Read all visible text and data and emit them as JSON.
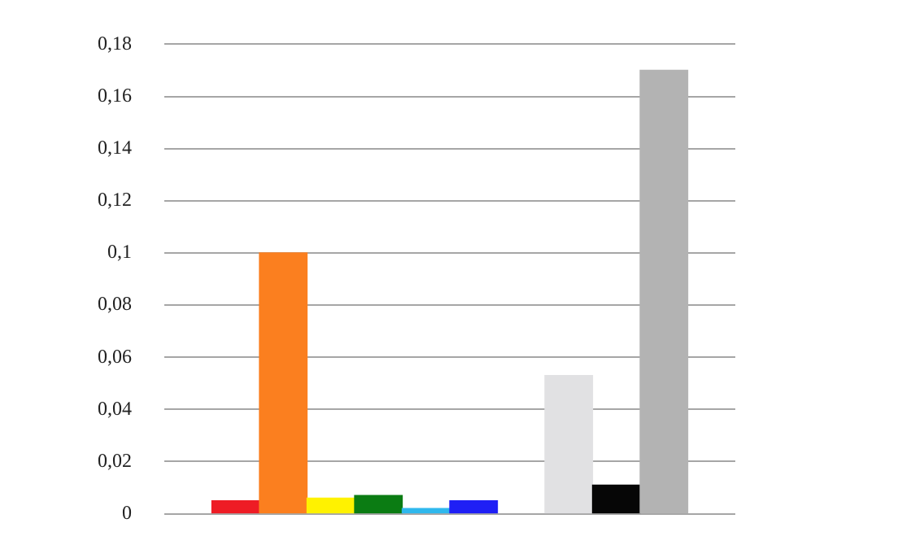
{
  "chart_data": {
    "type": "bar",
    "categories": [
      null,
      null,
      null,
      null,
      null,
      null,
      null,
      null,
      null,
      null,
      null,
      null
    ],
    "values": [
      null,
      0.005,
      0.1,
      0.006,
      0.007,
      0.002,
      0.005,
      null,
      0.053,
      0.011,
      0.17,
      null
    ],
    "colors": [
      null,
      "#ee1c25",
      "#fb7f1f",
      "#fff200",
      "#0b7c13",
      "#2fb8ed",
      "#1f1ff5",
      null,
      "#e1e1e3",
      "#060606",
      "#b3b3b3",
      null
    ],
    "ylim": [
      0,
      0.18
    ],
    "yticks": [
      0,
      {
        "value": 0.02,
        "label": "0,02"
      },
      {
        "value": 0.04,
        "label": "0,04"
      },
      {
        "value": 0.06,
        "label": "0,06"
      },
      {
        "value": 0.08,
        "label": "0,08"
      },
      {
        "value": 0.1,
        "label": "0,1"
      },
      {
        "value": 0.12,
        "label": "0,12"
      },
      {
        "value": 0.14,
        "label": "0,14"
      },
      {
        "value": 0.16,
        "label": "0,16"
      },
      {
        "value": 0.18,
        "label": "0,18"
      }
    ],
    "grid": "y",
    "legend": false,
    "tick_labels": "y"
  }
}
